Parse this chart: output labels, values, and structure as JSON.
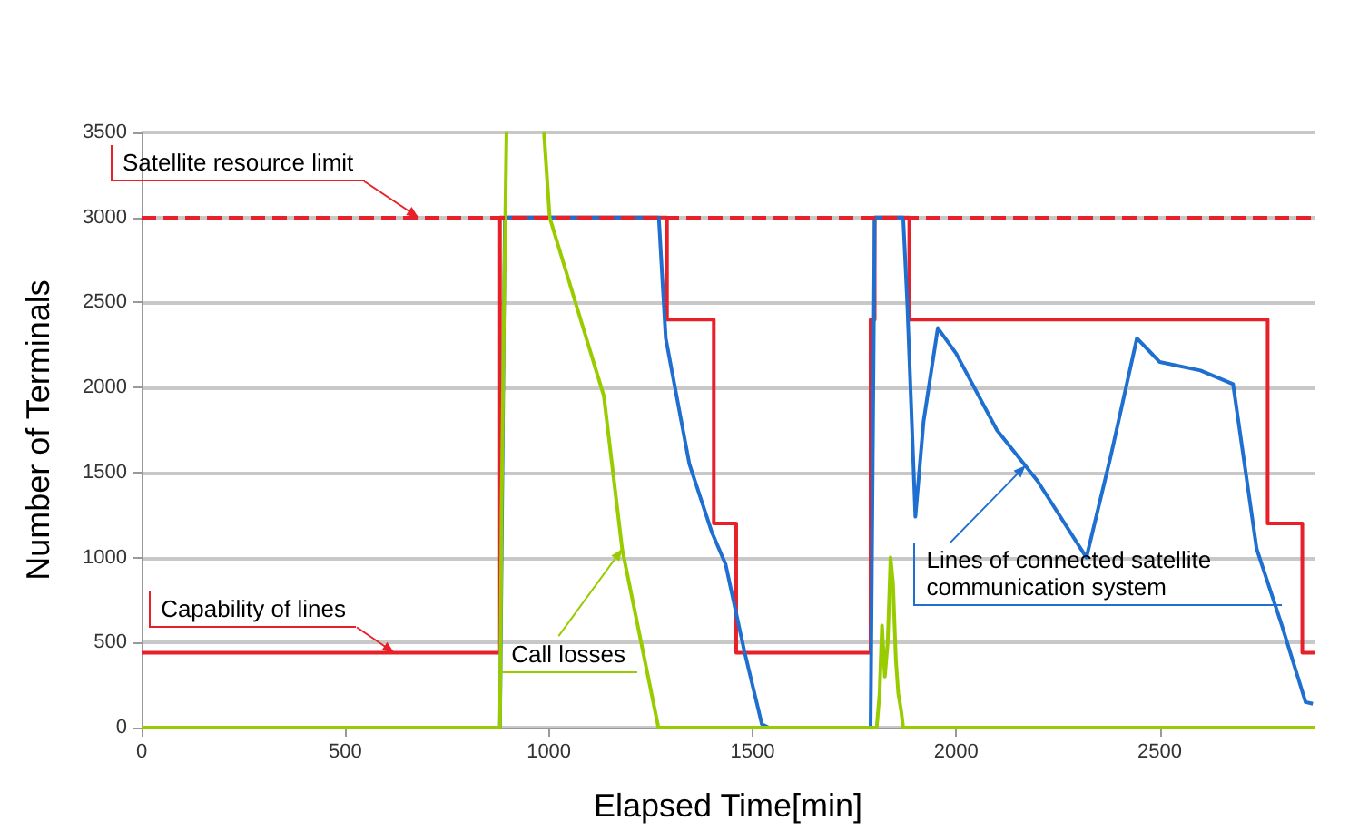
{
  "chart_data": {
    "type": "line",
    "xlabel": "Elapsed Time[min]",
    "ylabel": "Number of Terminals",
    "xlim": [
      0,
      2880
    ],
    "xticks": [
      0,
      500,
      1000,
      1500,
      2000,
      2500
    ],
    "ylim": [
      0,
      3500
    ],
    "yticks": [
      0,
      500,
      1000,
      1500,
      2000,
      2500,
      3000,
      3500
    ],
    "grid": "y",
    "marker": "none",
    "series": [
      {
        "type": "step",
        "color": "#e8202a",
        "x": [
          0,
          880,
          1290,
          1405,
          1460,
          1790,
          1800,
          1885,
          2765,
          2850,
          2880
        ],
        "values": [
          440,
          3000,
          2400,
          1200,
          440,
          2400,
          3000,
          2400,
          1200,
          440,
          440
        ]
      },
      {
        "color": "#1f6fd0",
        "x": [
          880,
          892,
          1270,
          1287,
          1345,
          1400,
          1434,
          1480,
          1523,
          1540,
          1700,
          1790,
          1795,
          1800,
          1870,
          1880,
          1900,
          1920,
          1955,
          2000,
          2100,
          2200,
          2320,
          2380,
          2444,
          2500,
          2600,
          2680,
          2738,
          2800,
          2858,
          2876
        ],
        "values": [
          0,
          3000,
          3000,
          2290,
          1550,
          1150,
          960,
          450,
          20,
          0,
          null,
          0,
          1500,
          3000,
          3000,
          2500,
          1240,
          1800,
          2350,
          2200,
          1750,
          1450,
          1000,
          1600,
          2290,
          2150,
          2100,
          2020,
          1050,
          600,
          150,
          140
        ]
      },
      {
        "color": "#99cc00",
        "x": [
          0,
          880,
          884,
          890,
          896,
          897,
          988,
          1002,
          1135,
          1180,
          1269,
          1805,
          1812,
          1818,
          1825,
          1832,
          1839,
          1845,
          1852,
          1858,
          1865,
          1870,
          2880
        ],
        "values": [
          0,
          0,
          1300,
          2500,
          3500,
          null,
          3500,
          3000,
          1950,
          1050,
          0,
          0,
          200,
          600,
          300,
          500,
          1000,
          850,
          400,
          200,
          100,
          0,
          0
        ]
      }
    ],
    "ref_lines": [
      {
        "axis": "y",
        "value": 3000,
        "color": "#e8202a",
        "line_style": "dashed"
      }
    ],
    "annotations": [
      {
        "text": "Satellite resource limit",
        "x": 680,
        "y": 3000
      },
      {
        "text": "Capability of lines",
        "x": 620,
        "y": 440
      },
      {
        "text": "Call losses",
        "x": 1180,
        "y": 1050
      },
      {
        "text": "Lines of connected satellite communication system",
        "x": 2170,
        "y": 1540
      }
    ]
  }
}
